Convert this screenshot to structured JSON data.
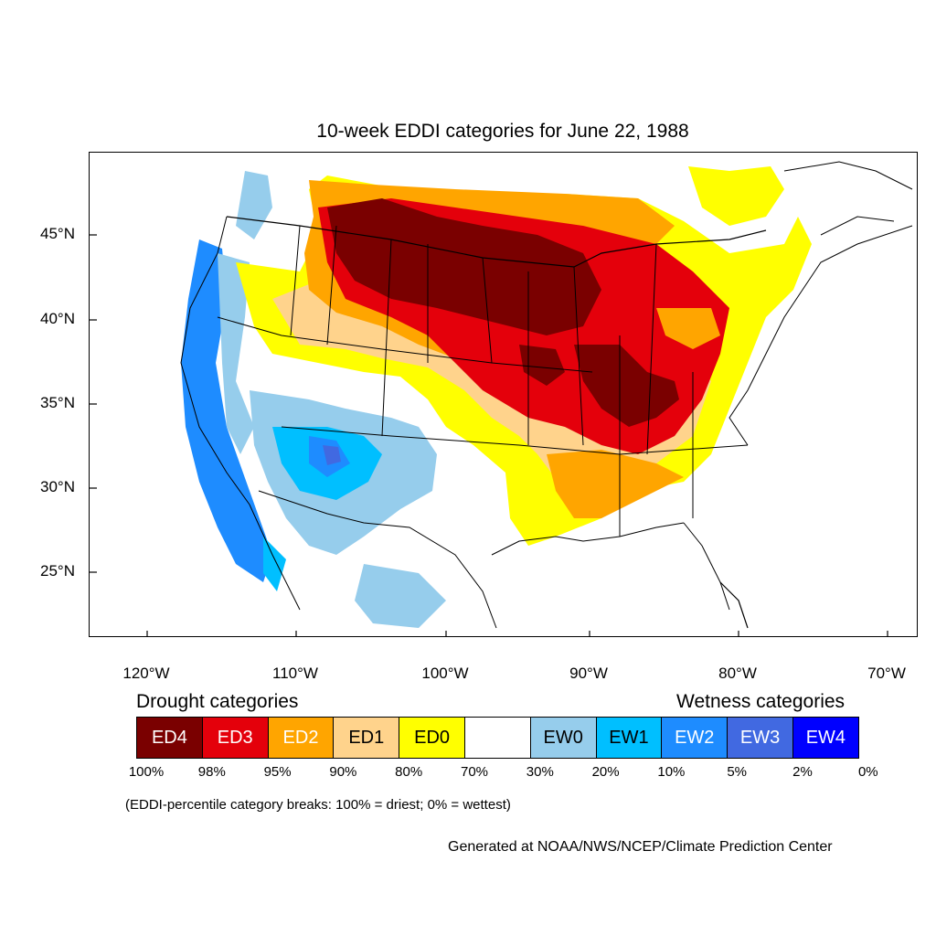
{
  "title": "10-week EDDI categories for June 22, 1988",
  "map": {
    "lat_labels": [
      "45°N",
      "40°N",
      "35°N",
      "30°N",
      "25°N"
    ],
    "lon_labels": [
      "120°W",
      "110°W",
      "100°W",
      "90°W",
      "80°W",
      "70°W"
    ]
  },
  "legend": {
    "drought_heading": "Drought categories",
    "wetness_heading": "Wetness categories",
    "categories": [
      {
        "label": "ED4",
        "color": "#7a0000",
        "text_color": "#ffffff"
      },
      {
        "label": "ED3",
        "color": "#e4000b",
        "text_color": "#ffffff"
      },
      {
        "label": "ED2",
        "color": "#ffa500",
        "text_color": "#ffffff"
      },
      {
        "label": "ED1",
        "color": "#ffd38c",
        "text_color": "#000000"
      },
      {
        "label": "ED0",
        "color": "#ffff00",
        "text_color": "#000000"
      },
      {
        "label": "",
        "color": "#ffffff",
        "text_color": "#000000"
      },
      {
        "label": "EW0",
        "color": "#96cdec",
        "text_color": "#000000"
      },
      {
        "label": "EW1",
        "color": "#00bfff",
        "text_color": "#000000"
      },
      {
        "label": "EW2",
        "color": "#1e8cff",
        "text_color": "#ffffff"
      },
      {
        "label": "EW3",
        "color": "#4169e1",
        "text_color": "#ffffff"
      },
      {
        "label": "EW4",
        "color": "#0000ff",
        "text_color": "#ffffff"
      }
    ],
    "percentiles": [
      "100%",
      "98%",
      "95%",
      "90%",
      "80%",
      "70%",
      "30%",
      "20%",
      "10%",
      "5%",
      "2%",
      "0%"
    ]
  },
  "note": "(EDDI-percentile category breaks: 100% = driest; 0% = wettest)",
  "credit": "Generated at NOAA/NWS/NCEP/Climate Prediction Center"
}
